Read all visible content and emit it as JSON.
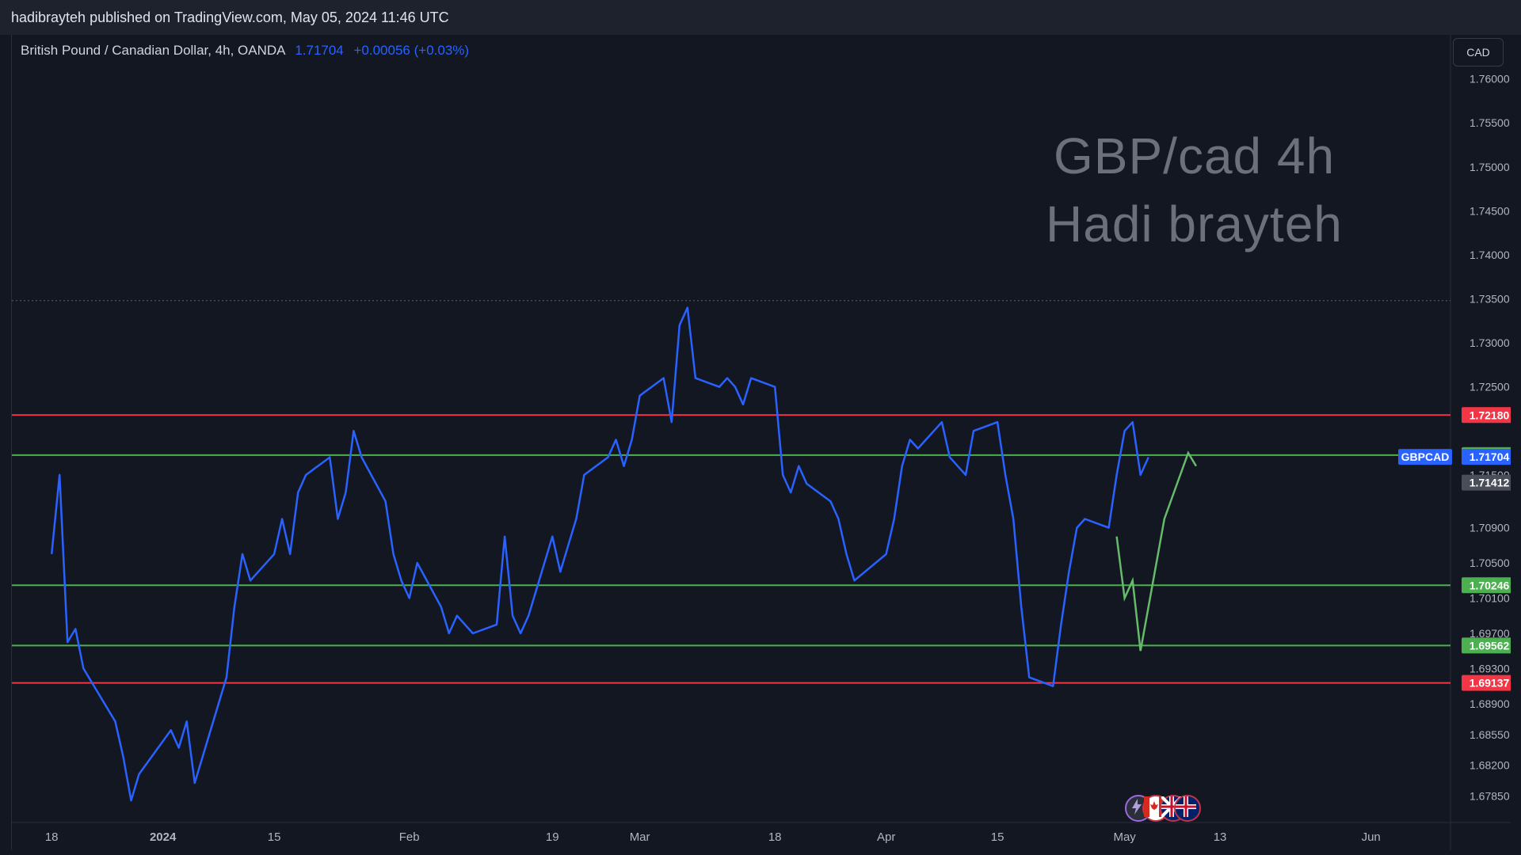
{
  "header": {
    "publisher_line": "hadibrayteh published on TradingView.com, May 05, 2024 11:46 UTC"
  },
  "legend": {
    "symbol": "British Pound / Canadian Dollar, 4h, OANDA",
    "price": "1.71704",
    "change": "+0.00056 (+0.03%)"
  },
  "currency_button": "CAD",
  "watermark": {
    "line1": "GBP/cad 4h",
    "line2": "Hadi brayteh"
  },
  "icons": [
    "lightning-icon",
    "canada-flag-icon",
    "uk-flag-icon",
    "circle-icon"
  ],
  "colors": {
    "background": "#131722",
    "price_line": "#2962ff",
    "support": "#4caf50",
    "resistance": "#f23645",
    "projection": "#66bb6a"
  },
  "chart_data": {
    "type": "line",
    "symbol": "GBPCAD",
    "timeframe": "4h",
    "ylim": [
      1.6755,
      1.765
    ],
    "y_ticks": [
      "1.76000",
      "1.75500",
      "1.75000",
      "1.74500",
      "1.74000",
      "1.73500",
      "1.73000",
      "1.72500",
      "1.71500",
      "1.70900",
      "1.70500",
      "1.70100",
      "1.69700",
      "1.69300",
      "1.68900",
      "1.68550",
      "1.68200",
      "1.67850"
    ],
    "x_ticks": [
      "18",
      "2024",
      "15",
      "Feb",
      "19",
      "Mar",
      "18",
      "Apr",
      "15",
      "May",
      "13",
      "Jun"
    ],
    "series": [
      {
        "x": [
          "2023-12-18",
          "2023-12-19",
          "2023-12-20",
          "2023-12-21",
          "2023-12-22",
          "2023-12-26",
          "2023-12-27",
          "2023-12-28",
          "2023-12-29",
          "2024-01-02",
          "2024-01-03",
          "2024-01-04",
          "2024-01-05",
          "2024-01-08",
          "2024-01-09",
          "2024-01-10",
          "2024-01-11",
          "2024-01-12",
          "2024-01-15",
          "2024-01-16",
          "2024-01-17",
          "2024-01-18",
          "2024-01-19",
          "2024-01-22",
          "2024-01-23",
          "2024-01-24",
          "2024-01-25",
          "2024-01-26",
          "2024-01-29",
          "2024-01-30",
          "2024-01-31",
          "2024-02-01",
          "2024-02-02",
          "2024-02-05",
          "2024-02-06",
          "2024-02-07",
          "2024-02-08",
          "2024-02-09",
          "2024-02-12",
          "2024-02-13",
          "2024-02-14",
          "2024-02-15",
          "2024-02-16",
          "2024-02-19",
          "2024-02-20",
          "2024-02-21",
          "2024-02-22",
          "2024-02-23",
          "2024-02-26",
          "2024-02-27",
          "2024-02-28",
          "2024-02-29",
          "2024-03-01",
          "2024-03-04",
          "2024-03-05",
          "2024-03-06",
          "2024-03-07",
          "2024-03-08",
          "2024-03-11",
          "2024-03-12",
          "2024-03-13",
          "2024-03-14",
          "2024-03-15",
          "2024-03-18",
          "2024-03-19",
          "2024-03-20",
          "2024-03-21",
          "2024-03-22",
          "2024-03-25",
          "2024-03-26",
          "2024-03-27",
          "2024-03-28",
          "2024-04-01",
          "2024-04-02",
          "2024-04-03",
          "2024-04-04",
          "2024-04-05",
          "2024-04-08",
          "2024-04-09",
          "2024-04-10",
          "2024-04-11",
          "2024-04-12",
          "2024-04-15",
          "2024-04-16",
          "2024-04-17",
          "2024-04-18",
          "2024-04-19",
          "2024-04-22",
          "2024-04-23",
          "2024-04-24",
          "2024-04-25",
          "2024-04-26",
          "2024-04-29",
          "2024-04-30",
          "2024-05-01",
          "2024-05-02",
          "2024-05-03",
          "2024-05-04"
        ],
        "values": [
          1.706,
          1.715,
          1.696,
          1.6975,
          1.693,
          1.687,
          1.683,
          1.678,
          1.681,
          1.686,
          1.684,
          1.687,
          1.68,
          1.689,
          1.692,
          1.7,
          1.706,
          1.703,
          1.706,
          1.71,
          1.706,
          1.713,
          1.715,
          1.717,
          1.71,
          1.713,
          1.72,
          1.717,
          1.712,
          1.706,
          1.703,
          1.701,
          1.705,
          1.7,
          1.697,
          1.699,
          1.698,
          1.697,
          1.698,
          1.708,
          1.699,
          1.697,
          1.699,
          1.708,
          1.704,
          1.707,
          1.71,
          1.715,
          1.717,
          1.719,
          1.716,
          1.719,
          1.724,
          1.726,
          1.721,
          1.732,
          1.734,
          1.726,
          1.725,
          1.726,
          1.725,
          1.723,
          1.726,
          1.725,
          1.715,
          1.713,
          1.716,
          1.714,
          1.712,
          1.71,
          1.706,
          1.703,
          1.706,
          1.71,
          1.716,
          1.719,
          1.718,
          1.721,
          1.717,
          1.716,
          1.715,
          1.72,
          1.721,
          1.715,
          1.71,
          1.7,
          1.692,
          1.691,
          1.698,
          1.704,
          1.709,
          1.71,
          1.709,
          1.715,
          1.72,
          1.721,
          1.715,
          1.717
        ]
      }
    ],
    "horizontal_levels": [
      {
        "value": 1.7218,
        "color": "#f23645",
        "label": "1.72180",
        "kind": "resistance"
      },
      {
        "value": 1.71725,
        "color": "#4caf50",
        "label": "1.71725",
        "kind": "support"
      },
      {
        "value": 1.70246,
        "color": "#4caf50",
        "label": "1.70246",
        "kind": "support"
      },
      {
        "value": 1.69562,
        "color": "#4caf50",
        "label": "1.69562",
        "kind": "support"
      },
      {
        "value": 1.69137,
        "color": "#f23645",
        "label": "1.69137",
        "kind": "resistance"
      }
    ],
    "dotted_level": {
      "value": 1.7348
    },
    "price_labels": [
      {
        "text": "GBPCAD",
        "value": 1.71704,
        "color": "#2962ff",
        "kind": "symbol-tag"
      },
      {
        "text": "1.71704",
        "value": 1.71704,
        "color": "#2962ff",
        "kind": "last-price"
      },
      {
        "text": "1.71412",
        "value": 1.71412,
        "color": "#4a4e59",
        "kind": "gray-tag"
      }
    ],
    "projection": {
      "color": "#66bb6a",
      "x": [
        "2024-04-30",
        "2024-05-01",
        "2024-05-02",
        "2024-05-03",
        "2024-05-06",
        "2024-05-09",
        "2024-05-10"
      ],
      "values": [
        1.708,
        1.701,
        1.703,
        1.695,
        1.71,
        1.7175,
        1.716
      ]
    }
  }
}
